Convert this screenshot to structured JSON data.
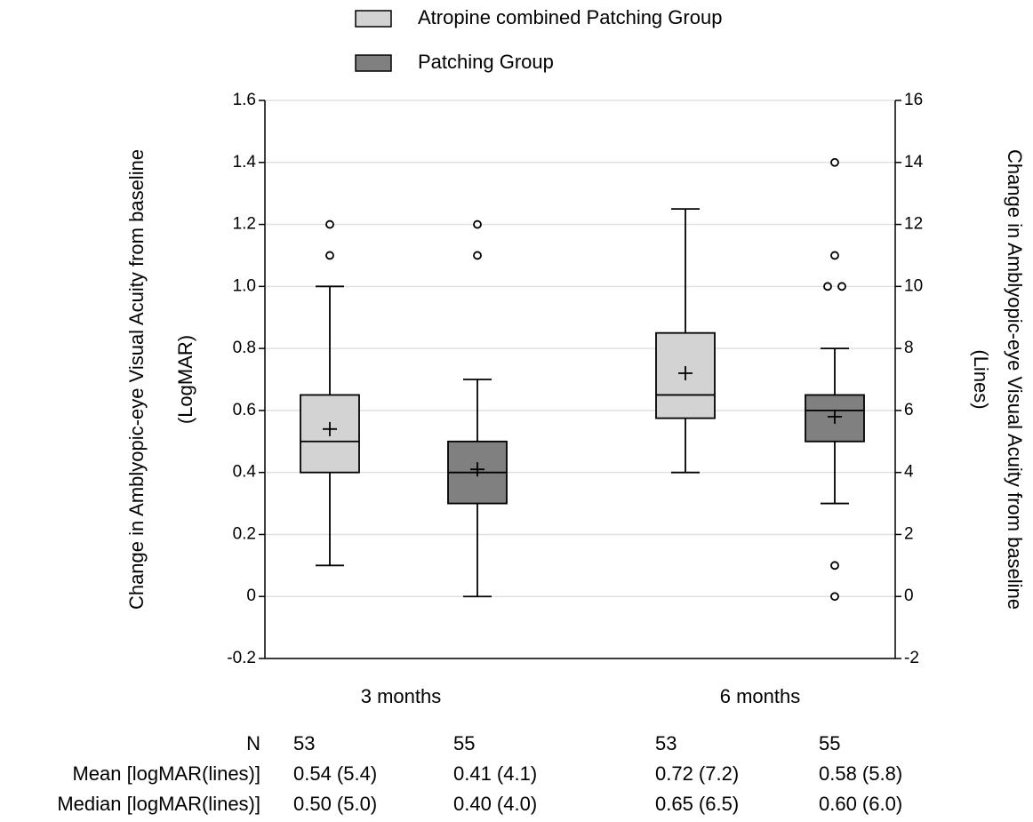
{
  "chart_data": {
    "type": "box",
    "categories": [
      "3 months",
      "6 months"
    ],
    "ylabel": [
      "Change in Amblyopic-eye Visual Acuity from baseline",
      "(LogMAR)"
    ],
    "y2label": [
      "Change in Amblyopic-eye Visual Acuity from baseline",
      "(Lines)"
    ],
    "ylim": [
      -0.2,
      1.6
    ],
    "yticks": [
      -0.2,
      0,
      0.2,
      0.4,
      0.6,
      0.8,
      {
        "value": 1.0,
        "label": "1.0"
      },
      1.2,
      1.4,
      1.6
    ],
    "y2lim": [
      -2,
      16
    ],
    "y2ticks": [
      -2,
      0,
      2,
      4,
      6,
      8,
      10,
      12,
      14,
      16
    ],
    "grid": true,
    "series": [
      {
        "name": "Atropine combined  Patching Group",
        "color": "#d3d3d3",
        "values": [
          {
            "low": 0.1,
            "q1": 0.4,
            "median": 0.5,
            "q3": 0.65,
            "high": 1.0,
            "mean": 0.54,
            "outliers": [
              1.1,
              1.2
            ]
          },
          {
            "low": 0.4,
            "q1": 0.575,
            "median": 0.65,
            "q3": 0.85,
            "high": 1.25,
            "mean": 0.72,
            "outliers": []
          }
        ]
      },
      {
        "name": "Patching Group",
        "color": "#808080",
        "values": [
          {
            "low": 0,
            "q1": 0.3,
            "median": 0.4,
            "q3": 0.5,
            "high": 0.7,
            "mean": 0.41,
            "outliers": [
              1.1,
              1.2
            ]
          },
          {
            "low": 0.3,
            "q1": 0.5,
            "median": 0.6,
            "q3": 0.65,
            "high": 0.8,
            "mean": 0.58,
            "outliers": [
              0,
              0.1,
              1.0,
              1.0,
              1.1,
              1.4
            ]
          }
        ]
      }
    ],
    "table": {
      "row_labels": [
        "N",
        "Mean [logMAR(lines)]",
        "Median [logMAR(lines)]"
      ],
      "rows": [
        [
          53,
          55,
          53,
          55
        ],
        [
          "0.54 (5.4)",
          "0.41 (4.1)",
          "0.72 (7.2)",
          "0.58 (5.8)"
        ],
        [
          "0.50 (5.0)",
          "0.40 (4.0)",
          "0.65 (6.5)",
          "0.60 (6.0)"
        ]
      ]
    }
  }
}
